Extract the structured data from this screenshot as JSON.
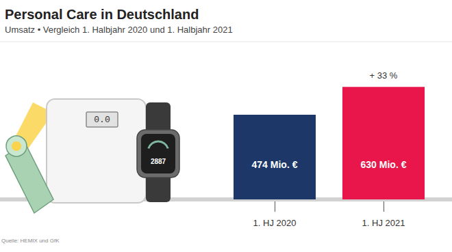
{
  "chart_data": {
    "type": "bar",
    "title": "Personal Care in Deutschland",
    "subtitle": "Umsatz • Vergleich 1. Halbjahr 2020 und 1. Halbjahr 2021",
    "categories": [
      "1. HJ 2020",
      "1. HJ 2021"
    ],
    "values": [
      474,
      630
    ],
    "value_labels": [
      "474 Mio. €",
      "630 Mio. €"
    ],
    "colors": [
      "#1d3769",
      "#e8164a"
    ],
    "data_labels": true,
    "annotations": [
      {
        "category": "1. HJ 2021",
        "text": "+ 33 %"
      }
    ],
    "ylim": [
      0,
      700
    ],
    "yticks": [
      0,
      700
    ],
    "grid": false,
    "tick_labels": "x",
    "source": "Quelle: HEMIX und GfK",
    "illustration": {
      "scale_display": "0.0",
      "watch_display": "2887"
    }
  }
}
